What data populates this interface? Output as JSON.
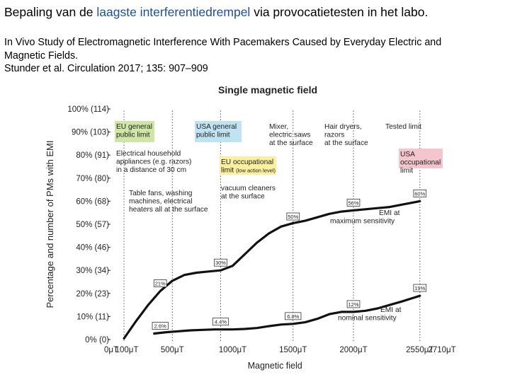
{
  "slide": {
    "title_pre": "Bepaling van de ",
    "title_highlight": "laagste interferentiedrempel",
    "title_post": " via provocatietesten in het labo.",
    "citation_line1": "In Vivo Study of Electromagnetic Interference With Pacemakers Caused by Everyday Electric and",
    "citation_line2": "Magnetic Fields.",
    "citation_line3": "Stunder et al. Circulation 2017; 135: 907–909"
  },
  "colors": {
    "title_highlight": "#1f4e99",
    "eu_general": "#cfe6a6",
    "usa_general": "#bfe3f0",
    "eu_occupational": "#fbf0a0",
    "usa_occupational": "#f2c6cc",
    "curve": "#111111",
    "grid": "#444444"
  },
  "chart_data": {
    "type": "line",
    "title": "Single magnetic field",
    "xlabel": "Magnetic field",
    "ylabel": "Percentage and number of PMs with EMI",
    "xlim": [
      0,
      2710
    ],
    "ylim": [
      0,
      100
    ],
    "x_ticks": [
      {
        "value": 0,
        "label": "0μT"
      },
      {
        "value": 100,
        "label": "100μT"
      },
      {
        "value": 500,
        "label": "500μT"
      },
      {
        "value": 1000,
        "label": "1000μT"
      },
      {
        "value": 1500,
        "label": "1500μT"
      },
      {
        "value": 2000,
        "label": "2000μT"
      },
      {
        "value": 2550,
        "label": "2550μT"
      },
      {
        "value": 2710,
        "label": "2710μT"
      }
    ],
    "y_ticks": [
      {
        "value": 0,
        "label": "0% (0)"
      },
      {
        "value": 10,
        "label": "10% (11)"
      },
      {
        "value": 20,
        "label": "20% (23)"
      },
      {
        "value": 30,
        "label": "30% (34)"
      },
      {
        "value": 40,
        "label": "40% (46)"
      },
      {
        "value": 50,
        "label": "50% (57)"
      },
      {
        "value": 60,
        "label": "60% (68)"
      },
      {
        "value": 70,
        "label": "70% (80)"
      },
      {
        "value": 80,
        "label": "80% (91)"
      },
      {
        "value": 90,
        "label": "90% (103)"
      },
      {
        "value": 100,
        "label": "100% (114)"
      }
    ],
    "grid": false,
    "reference_lines": [
      100,
      500,
      900,
      1500,
      2000,
      2550
    ],
    "series": [
      {
        "name": "EMI at maximum sensitivity",
        "x": [
          100,
          200,
          300,
          400,
          500,
          600,
          700,
          800,
          900,
          1000,
          1100,
          1200,
          1300,
          1400,
          1500,
          1600,
          1700,
          1800,
          1900,
          2000,
          2100,
          2200,
          2300,
          2400,
          2550
        ],
        "y": [
          0.5,
          8,
          15,
          21,
          25.5,
          28,
          29,
          29.5,
          30,
          32,
          37,
          42,
          46,
          49,
          50.5,
          51.5,
          53,
          54.5,
          55.5,
          56,
          56.5,
          57,
          57.5,
          58.5,
          60
        ],
        "point_labels": [
          {
            "x": 400,
            "y": 21,
            "text": "21%"
          },
          {
            "x": 900,
            "y": 30,
            "text": "30%"
          },
          {
            "x": 1500,
            "y": 50,
            "text": "50%"
          },
          {
            "x": 2000,
            "y": 56,
            "text": "56%"
          },
          {
            "x": 2550,
            "y": 60,
            "text": "60%"
          }
        ]
      },
      {
        "name": "EMI at nominal sensitivity",
        "x": [
          350,
          450,
          550,
          650,
          750,
          850,
          900,
          1000,
          1100,
          1200,
          1300,
          1400,
          1500,
          1600,
          1700,
          1800,
          1900,
          2000,
          2100,
          2200,
          2300,
          2400,
          2550
        ],
        "y": [
          2.6,
          3.2,
          3.6,
          4,
          4.2,
          4.4,
          4.4,
          4.4,
          4.6,
          5,
          5.8,
          6.5,
          6.8,
          7.5,
          9,
          11,
          12,
          12,
          12.5,
          13.5,
          15,
          16.5,
          19
        ],
        "point_labels": [
          {
            "x": 400,
            "y": 2.6,
            "text": "2.6%"
          },
          {
            "x": 900,
            "y": 4.4,
            "text": "4.4%"
          },
          {
            "x": 1500,
            "y": 6.8,
            "text": "6.8%"
          },
          {
            "x": 2000,
            "y": 12,
            "text": "12%"
          },
          {
            "x": 2550,
            "y": 19,
            "text": "19%"
          }
        ]
      }
    ],
    "series_labels": [
      {
        "lines": [
          "EMI at",
          "maximum sensitivity"
        ]
      },
      {
        "lines": [
          "EMI at",
          "nominal sensitivity"
        ]
      }
    ],
    "annotations": [
      {
        "id": "eu-general",
        "lines": [
          "EU general",
          "public limit"
        ],
        "highlight": "eu_general"
      },
      {
        "id": "usa-general",
        "lines": [
          "USA general",
          "public limit"
        ],
        "highlight": "usa_general"
      },
      {
        "id": "mixer",
        "lines": [
          "Mixer,",
          "electric saws",
          "at the surface"
        ]
      },
      {
        "id": "hair-dryers",
        "lines": [
          "Hair dryers,",
          "razors",
          "at the surface"
        ]
      },
      {
        "id": "tested-limit",
        "lines": [
          "Tested limit"
        ]
      },
      {
        "id": "usa-occupational",
        "lines": [
          "USA",
          "occupational",
          "limit"
        ],
        "highlight": "usa_occupational"
      },
      {
        "id": "household",
        "lines": [
          "Electrical household",
          "appliances (e.g. razors)",
          "in a distance of 30 cm"
        ]
      },
      {
        "id": "eu-occupational",
        "lines": [
          "EU occupational",
          "limit"
        ],
        "small": "(low action level)",
        "highlight": "eu_occupational"
      },
      {
        "id": "vacuum",
        "lines": [
          "vacuum cleaners",
          "at the surface"
        ]
      },
      {
        "id": "table-fans",
        "lines": [
          "Table fans, washing",
          "machines, electrical",
          "heaters all at the surface"
        ]
      }
    ]
  }
}
